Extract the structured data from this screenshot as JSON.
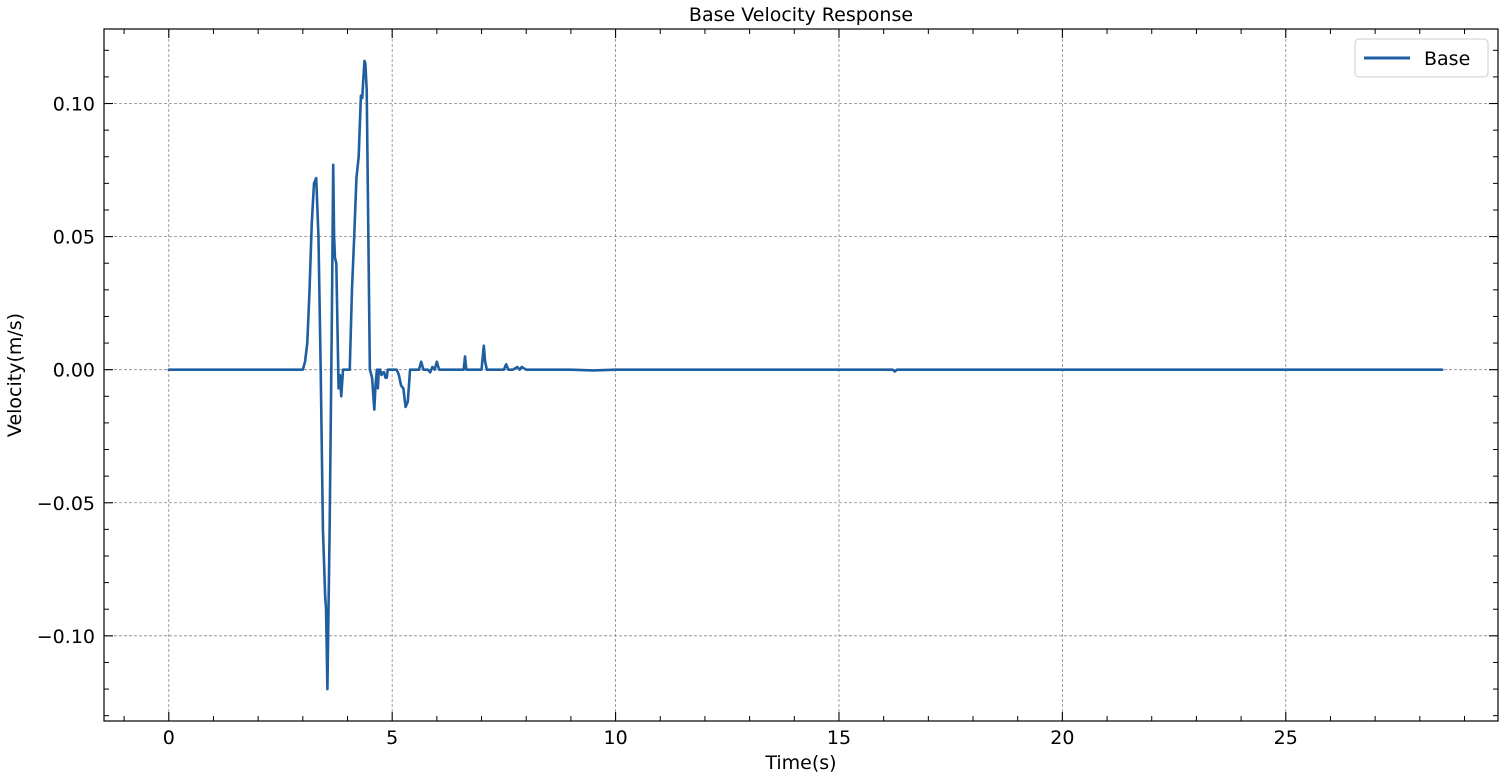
{
  "chart_data": {
    "type": "line",
    "title": "Base Velocity Response",
    "xlabel": "Time(s)",
    "ylabel": "Velocity(m/s)",
    "xlim": [
      -1.45,
      29.75
    ],
    "ylim": [
      -0.132,
      0.128
    ],
    "x_ticks": [
      0,
      5,
      10,
      15,
      20,
      25
    ],
    "x_tick_labels": [
      "0",
      "5",
      "10",
      "15",
      "20",
      "25"
    ],
    "y_ticks": [
      -0.1,
      -0.05,
      0.0,
      0.05,
      0.1
    ],
    "y_tick_labels": [
      "−0.10",
      "−0.05",
      "0.00",
      "0.05",
      "0.10"
    ],
    "grid": true,
    "legend_position": "top-right",
    "series": [
      {
        "name": "Base",
        "color": "#1f5fa0",
        "x": [
          0,
          1,
          2,
          3,
          3.05,
          3.1,
          3.15,
          3.2,
          3.25,
          3.3,
          3.35,
          3.4,
          3.45,
          3.5,
          3.52,
          3.55,
          3.6,
          3.65,
          3.68,
          3.7,
          3.72,
          3.75,
          3.8,
          3.83,
          3.86,
          3.9,
          3.95,
          4.0,
          4.05,
          4.1,
          4.15,
          4.2,
          4.25,
          4.3,
          4.33,
          4.35,
          4.38,
          4.4,
          4.43,
          4.46,
          4.5,
          4.55,
          4.6,
          4.63,
          4.66,
          4.68,
          4.7,
          4.73,
          4.76,
          4.8,
          4.82,
          4.85,
          4.88,
          4.9,
          4.95,
          5.0,
          5.05,
          5.1,
          5.15,
          5.2,
          5.25,
          5.3,
          5.35,
          5.4,
          5.45,
          5.5,
          5.6,
          5.65,
          5.7,
          5.75,
          5.8,
          5.85,
          5.9,
          5.95,
          6.0,
          6.05,
          6.1,
          6.2,
          6.3,
          6.5,
          6.6,
          6.63,
          6.66,
          6.7,
          6.8,
          6.9,
          7.0,
          7.05,
          7.08,
          7.12,
          7.2,
          7.4,
          7.5,
          7.55,
          7.6,
          7.7,
          7.8,
          7.85,
          7.9,
          8.0,
          8.5,
          9.0,
          9.5,
          10,
          12,
          15,
          16.2,
          16.25,
          16.3,
          17,
          20,
          25,
          28.5
        ],
        "y": [
          0,
          0,
          0,
          0,
          0.003,
          0.01,
          0.03,
          0.055,
          0.07,
          0.072,
          0.05,
          0.0,
          -0.06,
          -0.085,
          -0.09,
          -0.12,
          -0.06,
          0.02,
          0.077,
          0.05,
          0.042,
          0.04,
          -0.007,
          -0.002,
          -0.01,
          0.0,
          0.0,
          0.0,
          0.0,
          0.03,
          0.05,
          0.072,
          0.08,
          0.103,
          0.102,
          0.108,
          0.116,
          0.115,
          0.105,
          0.06,
          0.0,
          -0.003,
          -0.015,
          -0.005,
          0.0,
          -0.007,
          0.0,
          0.0,
          -0.002,
          -0.001,
          -0.001,
          -0.003,
          -0.003,
          0.0,
          0.0,
          0.0,
          0.0,
          0.0,
          -0.002,
          -0.006,
          -0.007,
          -0.014,
          -0.012,
          0.0,
          0.0,
          0.0,
          0.0,
          0.003,
          0.0,
          0.0,
          0.0,
          -0.001,
          0.001,
          0.0,
          0.003,
          0.0,
          0.0,
          0.0,
          0.0,
          0.0,
          0.0,
          0.005,
          0.0,
          0.0,
          0.0,
          0.0,
          0.0,
          0.009,
          0.003,
          0.0,
          0.0,
          0.0,
          0.0,
          0.002,
          0.0,
          0.0,
          0.001,
          0.0,
          0.001,
          0.0,
          0.0,
          0.0,
          -0.0003,
          0.0,
          0.0,
          0.0,
          0.0,
          -0.0007,
          0.0,
          0.0,
          0.0,
          0.0,
          0.0
        ]
      }
    ]
  }
}
